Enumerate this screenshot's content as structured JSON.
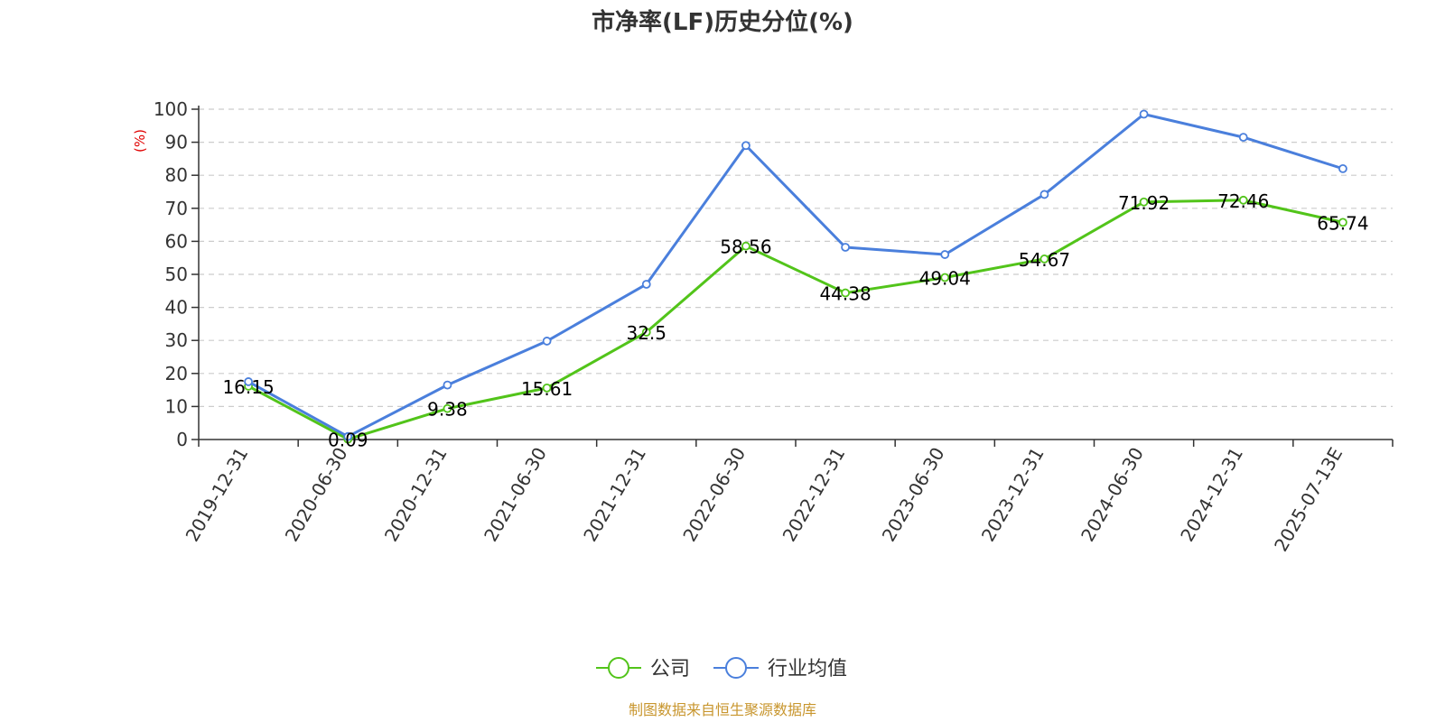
{
  "chart_data": {
    "type": "line",
    "title": "市净率(LF)历史分位(%)",
    "ylabel": "(%)",
    "ylim": [
      0,
      100
    ],
    "yticks": [
      0,
      10,
      20,
      30,
      40,
      50,
      60,
      70,
      80,
      90,
      100
    ],
    "categories": [
      "2019-12-31",
      "2020-06-30",
      "2020-12-31",
      "2021-06-30",
      "2021-12-31",
      "2022-06-30",
      "2022-12-31",
      "2023-06-30",
      "2023-12-31",
      "2024-06-30",
      "2024-12-31",
      "2025-07-13E"
    ],
    "series": [
      {
        "name": "公司",
        "color": "#52c41a",
        "values": [
          16.15,
          0.09,
          9.38,
          15.61,
          32.5,
          58.56,
          44.38,
          49.04,
          54.67,
          71.92,
          72.46,
          65.74
        ],
        "labels": [
          "16.15",
          "0.09",
          "9.38",
          "15.61",
          "32.5",
          "58.56",
          "44.38",
          "49.04",
          "54.67",
          "71.92",
          "72.46",
          "65.74"
        ]
      },
      {
        "name": "行业均值",
        "color": "#4a7fdc",
        "values": [
          17.5,
          0.9,
          16.5,
          29.8,
          47.0,
          89.0,
          58.2,
          56.0,
          74.2,
          98.5,
          91.5,
          82.0
        ]
      }
    ],
    "grid": true,
    "legend": "bottom-center"
  },
  "footer": {
    "source": "制图数据来自恒生聚源数据库",
    "source_color": "#c8962e"
  },
  "ylabel_color": "#e00000"
}
